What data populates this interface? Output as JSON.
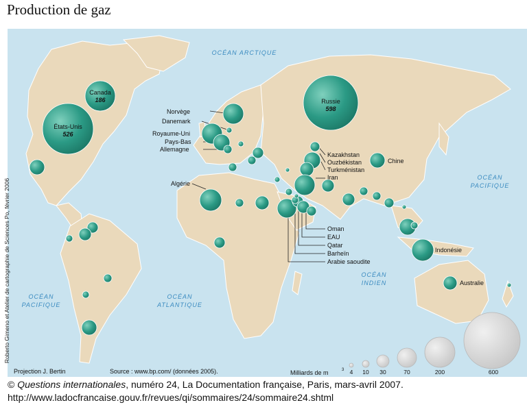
{
  "title": "Production de gaz",
  "credit": "Roberto Gimeno et Atelier de cartographie de Sciences Po, février 2006",
  "projection": "Projection J. Bertin",
  "source": "Source : www.bp.com/ (données 2005).",
  "oceans": {
    "arctique": "OCÉAN ARCTIQUE",
    "pacifique_w_1": "OCÉAN",
    "pacifique_w_2": "PACIFIQUE",
    "atlantique_1": "OCÉAN",
    "atlantique_2": "ATLANTIQUE",
    "indien_1": "OCÉAN",
    "indien_2": "INDIEN",
    "pacifique_e_1": "OCÉAN",
    "pacifique_e_2": "PACIFIQUE"
  },
  "countries": [
    {
      "name": "Canada",
      "value": "186"
    },
    {
      "name": "États-Unis",
      "value": "526"
    },
    {
      "name": "Russie",
      "value": "598"
    },
    {
      "name": "Norvège"
    },
    {
      "name": "Danemark"
    },
    {
      "name": "Royaume-Uni"
    },
    {
      "name": "Pays-Bas"
    },
    {
      "name": "Allemagne"
    },
    {
      "name": "Algérie"
    },
    {
      "name": "Kazakhstan"
    },
    {
      "name": "Ouzbékistan"
    },
    {
      "name": "Turkménistan"
    },
    {
      "name": "Iran"
    },
    {
      "name": "Chine"
    },
    {
      "name": "Oman"
    },
    {
      "name": "EAU"
    },
    {
      "name": "Qatar"
    },
    {
      "name": "Barheïn"
    },
    {
      "name": "Arabie saoudite"
    },
    {
      "name": "Indonésie"
    },
    {
      "name": "Australie"
    }
  ],
  "legend": {
    "title": "Milliards de m",
    "superscript": "3",
    "values": [
      "4",
      "10",
      "30",
      "70",
      "200",
      "600"
    ]
  },
  "caption": {
    "prefix": "© ",
    "publication": "Questions internationales",
    "rest": ", numéro 24, La Documentation française, Paris, mars-avril 2007.",
    "url": "http://www.ladocfrancaise.gouv.fr/revues/qi/sommaires/24/sommaire24.shtml"
  },
  "colors": {
    "ocean": "#c9e3ef",
    "land": "#ead9bb",
    "bubble": "#2b9a85",
    "legend_bubble": "#d6d6d6"
  }
}
